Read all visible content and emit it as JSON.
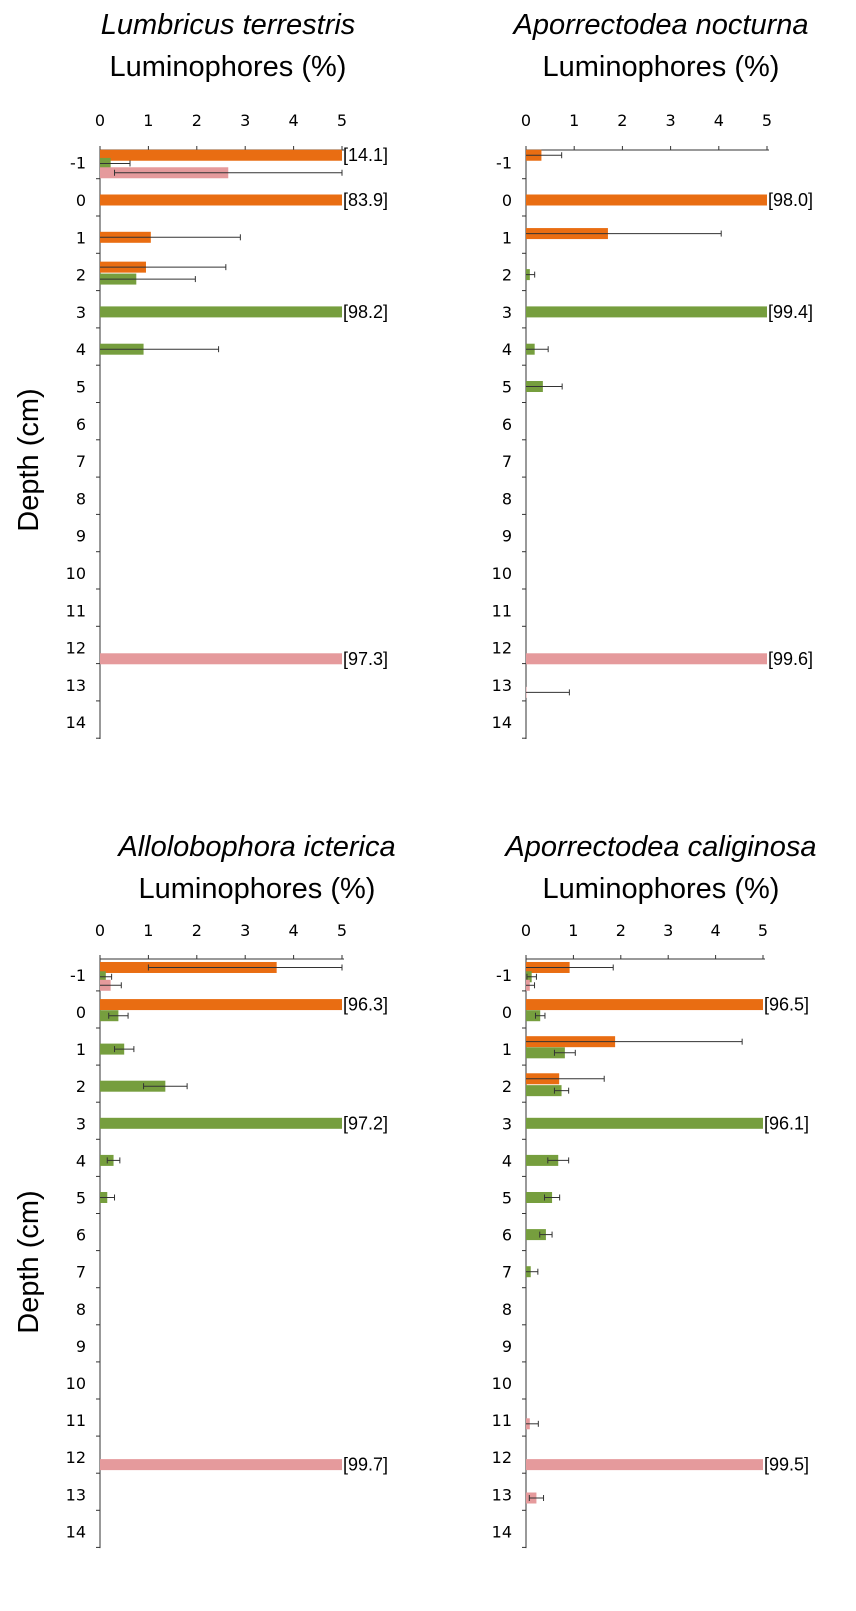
{
  "colors": {
    "orange": "#e96d12",
    "green": "#769e3e",
    "pink": "#e59a9c",
    "axis": "#333333",
    "error": "#333333"
  },
  "y_axis_label": "Depth (cm)",
  "chart_data": [
    {
      "type": "bar",
      "title": "Lumbricus terrestris",
      "subtitle": "Luminophores (%)",
      "xlabel": "Luminophores (%)",
      "ylabel": "Depth (cm)",
      "xlim": [
        0,
        5
      ],
      "x_ticks": [
        0,
        1,
        2,
        3,
        4,
        5
      ],
      "y_ticks": [
        -1,
        0,
        1,
        2,
        3,
        4,
        5,
        6,
        7,
        8,
        9,
        10,
        11,
        12,
        13,
        14
      ],
      "series": [
        {
          "color": "orange",
          "points": [
            {
              "depth": -1.2,
              "value": 5,
              "error": 0,
              "label": "[14.1]"
            },
            {
              "depth": 0,
              "value": 5,
              "error": 0,
              "label": "[83.9]"
            },
            {
              "depth": 1,
              "value": 1.05,
              "error": 1.85
            },
            {
              "depth": 1.8,
              "value": 0.95,
              "error": 1.65
            }
          ]
        },
        {
          "color": "green",
          "points": [
            {
              "depth": -0.98,
              "value": 0.22,
              "error": 0.4
            },
            {
              "depth": 2.12,
              "value": 0.75,
              "error": 1.22
            },
            {
              "depth": 3,
              "value": 5,
              "error": 0,
              "label": "[98.2]"
            },
            {
              "depth": 4,
              "value": 0.9,
              "error": 1.55
            }
          ]
        },
        {
          "color": "pink",
          "points": [
            {
              "depth": -0.73,
              "value": 2.65,
              "error": 2.35
            },
            {
              "depth": 12.3,
              "value": 5,
              "error": 0,
              "label": "[97.3]"
            }
          ]
        }
      ]
    },
    {
      "type": "bar",
      "title": "Aporrectodea nocturna",
      "subtitle": "Luminophores (%)",
      "xlabel": "Luminophores (%)",
      "ylabel": "",
      "xlim": [
        0,
        5
      ],
      "x_ticks": [
        0,
        1,
        2,
        3,
        4,
        5
      ],
      "y_ticks": [
        -1,
        0,
        1,
        2,
        3,
        4,
        5,
        6,
        7,
        8,
        9,
        10,
        11,
        12,
        13,
        14
      ],
      "series": [
        {
          "color": "orange",
          "points": [
            {
              "depth": -1.2,
              "value": 0.32,
              "error": 0.42
            },
            {
              "depth": 0,
              "value": 5,
              "error": 0,
              "label": "[98.0]"
            },
            {
              "depth": 0.9,
              "value": 1.7,
              "error": 2.35
            }
          ]
        },
        {
          "color": "green",
          "points": [
            {
              "depth": 2,
              "value": 0.08,
              "error": 0.1
            },
            {
              "depth": 3,
              "value": 5,
              "error": 0,
              "label": "[99.4]"
            },
            {
              "depth": 4,
              "value": 0.18,
              "error": 0.28
            },
            {
              "depth": 5,
              "value": 0.35,
              "error": 0.4
            }
          ]
        },
        {
          "color": "pink",
          "points": [
            {
              "depth": 12.3,
              "value": 5,
              "error": 0,
              "label": "[99.6]"
            },
            {
              "depth": 13.2,
              "value": 0,
              "error": 0.9
            }
          ]
        }
      ]
    },
    {
      "type": "bar",
      "title": "Allolobophora icterica",
      "subtitle": "Luminophores (%)",
      "xlabel": "Luminophores (%)",
      "ylabel": "Depth (cm)",
      "xlim": [
        0,
        5
      ],
      "x_ticks": [
        0,
        1,
        2,
        3,
        4,
        5
      ],
      "y_ticks": [
        -1,
        0,
        1,
        2,
        3,
        4,
        5,
        6,
        7,
        8,
        9,
        10,
        11,
        12,
        13,
        14
      ],
      "series": [
        {
          "color": "orange",
          "points": [
            {
              "depth": -1.2,
              "value": 3.65,
              "error": 1.35,
              "error_low": 2.65
            },
            {
              "depth": -0.2,
              "value": 5,
              "error": 0,
              "label": "[96.3]"
            }
          ]
        },
        {
          "color": "green",
          "points": [
            {
              "depth": -0.95,
              "value": 0.12,
              "error": 0.12
            },
            {
              "depth": 0.1,
              "value": 0.38,
              "error": 0.2
            },
            {
              "depth": 1,
              "value": 0.5,
              "error": 0.2
            },
            {
              "depth": 2,
              "value": 1.35,
              "error": 0.45
            },
            {
              "depth": 3,
              "value": 5,
              "error": 0,
              "label": "[97.2]"
            },
            {
              "depth": 4,
              "value": 0.28,
              "error": 0.13
            },
            {
              "depth": 5,
              "value": 0.15,
              "error": 0.15
            }
          ]
        },
        {
          "color": "pink",
          "points": [
            {
              "depth": -0.72,
              "value": 0.22,
              "error": 0.22
            },
            {
              "depth": 12.2,
              "value": 5,
              "error": 0,
              "label": "[99.7]"
            }
          ]
        }
      ]
    },
    {
      "type": "bar",
      "title": "Aporrectodea caliginosa",
      "subtitle": "Luminophores (%)",
      "xlabel": "Luminophores (%)",
      "ylabel": "",
      "xlim": [
        0,
        5
      ],
      "x_ticks": [
        0,
        1,
        2,
        3,
        4,
        5
      ],
      "y_ticks": [
        -1,
        0,
        1,
        2,
        3,
        4,
        5,
        6,
        7,
        8,
        9,
        10,
        11,
        12,
        13,
        14
      ],
      "series": [
        {
          "color": "orange",
          "points": [
            {
              "depth": -1.2,
              "value": 0.92,
              "error": 0.92
            },
            {
              "depth": -0.2,
              "value": 5,
              "error": 0,
              "label": "[96.5]"
            },
            {
              "depth": 0.8,
              "value": 1.88,
              "error": 2.68
            },
            {
              "depth": 1.8,
              "value": 0.7,
              "error": 0.95
            }
          ]
        },
        {
          "color": "green",
          "points": [
            {
              "depth": -0.95,
              "value": 0.12,
              "error": 0.1
            },
            {
              "depth": 0.1,
              "value": 0.3,
              "error": 0.1
            },
            {
              "depth": 1.1,
              "value": 0.82,
              "error": 0.22
            },
            {
              "depth": 2.12,
              "value": 0.75,
              "error": 0.15
            },
            {
              "depth": 3,
              "value": 5,
              "error": 0,
              "label": "[96.1]"
            },
            {
              "depth": 4,
              "value": 0.68,
              "error": 0.22
            },
            {
              "depth": 5,
              "value": 0.55,
              "error": 0.16
            },
            {
              "depth": 6,
              "value": 0.42,
              "error": 0.13
            },
            {
              "depth": 7,
              "value": 0.1,
              "error": 0.15
            }
          ]
        },
        {
          "color": "pink",
          "points": [
            {
              "depth": -0.72,
              "value": 0.08,
              "error": 0.1
            },
            {
              "depth": 11.1,
              "value": 0.08,
              "error": 0.18
            },
            {
              "depth": 12.2,
              "value": 5,
              "error": 0,
              "label": "[99.5]"
            },
            {
              "depth": 13.1,
              "value": 0.22,
              "error": 0.15
            }
          ]
        }
      ]
    }
  ]
}
